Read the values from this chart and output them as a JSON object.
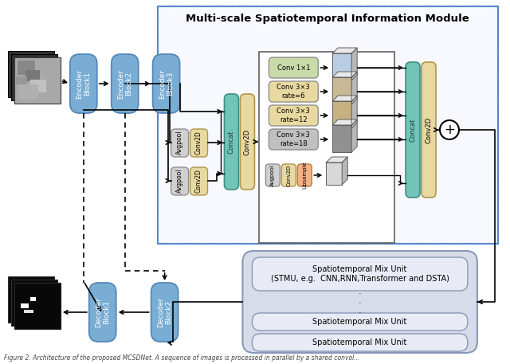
{
  "title": "Multi-scale Spatiotemporal Information Module",
  "caption": "Figure 2. Architecture of the proposed MCSDNet. A sequence of images is processed in parallel by a shared convol...",
  "colors": {
    "blue_block": "#7aadd4",
    "teal_block": "#70c4b8",
    "yellow_block": "#e8d9a0",
    "orange_block": "#f4b183",
    "green_block": "#c8dba8",
    "gray_block": "#d0d0d0",
    "dark_gray_block": "#909090",
    "dashed_border": "#5588cc",
    "spatiotemporal_bg": "#d8dce8",
    "spatiotemporal_inner": "#e8eaf5"
  },
  "encoder_labels": [
    "Encoder\nBlock1",
    "Encoder\nBlock2",
    "Encoder\nBlock3"
  ],
  "decoder_labels": [
    "Decoder\nBlock2",
    "Decoder\nBlock1"
  ],
  "aspp_rows": [
    {
      "label": "Conv 1×1",
      "color": "#c8dba8"
    },
    {
      "label": "Conv 3×3\nrate=6",
      "color": "#e8d9a0"
    },
    {
      "label": "Conv 3×3\nrate=12",
      "color": "#e8d9a0"
    },
    {
      "label": "Conv 3×3\nrate=18",
      "color": "#c0c0c0"
    }
  ],
  "spatiotemporal_labels": [
    "Spatiotemporal Mix Unit\n(STMU, e.g.  CNN,RNN,Transformer and DSTA)",
    "Spatiotemporal Mix Unit",
    "Spatiotemporal Mix Unit"
  ]
}
